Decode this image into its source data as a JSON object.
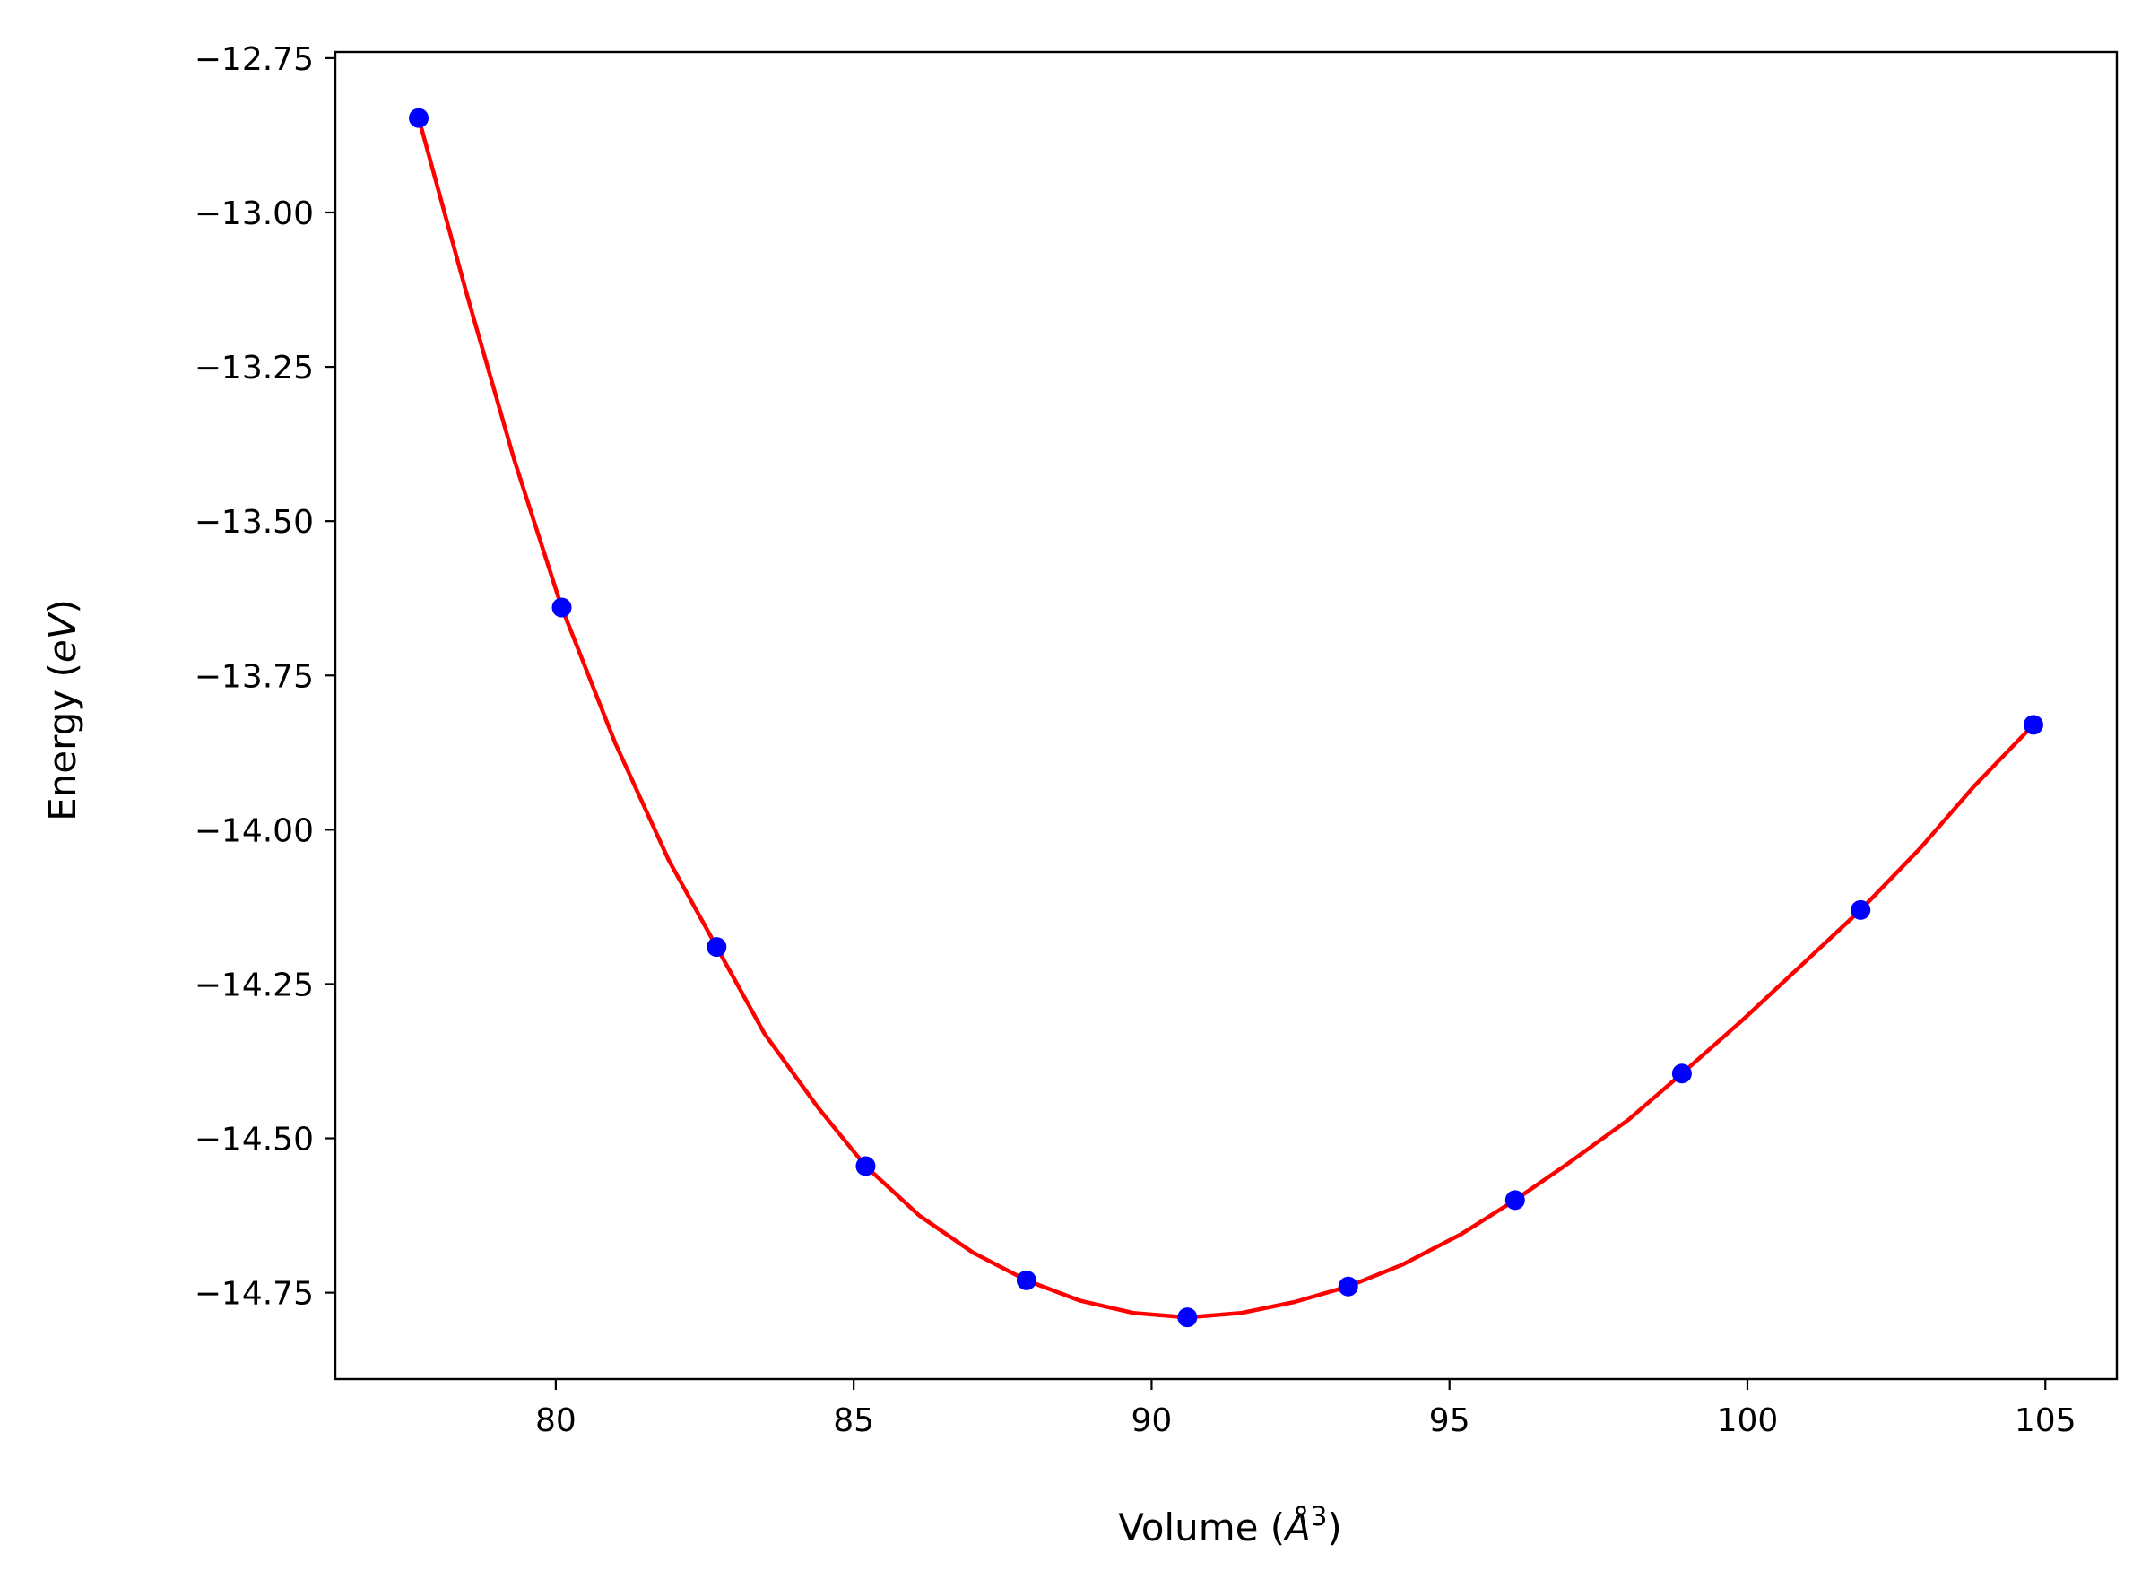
{
  "chart_data": {
    "type": "line",
    "title": "",
    "xlabel_main": "Volume (",
    "xlabel_unit": "Å",
    "xlabel_sup": "3",
    "xlabel_close": ")",
    "xlabel": "Volume (Å^3)",
    "ylabel_main": "Energy (",
    "ylabel_unit": "eV",
    "ylabel_close": ")",
    "ylabel": "Energy (eV)",
    "xlim": [
      76.3,
      106.2
    ],
    "ylim": [
      -14.89,
      -12.74
    ],
    "xticks": [
      80,
      85,
      90,
      95,
      100,
      105
    ],
    "xtick_labels": [
      "80",
      "85",
      "90",
      "95",
      "100",
      "105"
    ],
    "yticks": [
      -12.75,
      -13.0,
      -13.25,
      -13.5,
      -13.75,
      -14.0,
      -14.25,
      -14.5,
      -14.75
    ],
    "ytick_labels": [
      "−12.75",
      "−13.00",
      "−13.25",
      "−13.50",
      "−13.75",
      "−14.00",
      "−14.25",
      "−14.50",
      "−14.75"
    ],
    "grid": false,
    "legend": "none",
    "series": [
      {
        "kind": "scatter",
        "color": "#0000ff",
        "x": [
          77.7,
          80.1,
          82.7,
          85.2,
          87.9,
          90.6,
          93.3,
          96.1,
          98.9,
          101.9,
          104.8
        ],
        "y": [
          -12.847,
          -13.64,
          -14.19,
          -14.545,
          -14.73,
          -14.79,
          -14.74,
          -14.6,
          -14.395,
          -14.13,
          -13.83
        ]
      },
      {
        "kind": "line",
        "color": "#ff0000",
        "x": [
          77.7,
          78.5,
          79.3,
          80.1,
          81.0,
          81.9,
          82.7,
          83.5,
          84.4,
          85.2,
          86.1,
          87.0,
          87.9,
          88.8,
          89.7,
          90.6,
          91.5,
          92.4,
          93.3,
          94.2,
          95.2,
          96.1,
          97.0,
          98.0,
          98.9,
          99.9,
          100.9,
          101.9,
          102.9,
          103.8,
          104.8
        ],
        "y": [
          -12.847,
          -13.13,
          -13.4,
          -13.64,
          -13.86,
          -14.05,
          -14.19,
          -14.33,
          -14.45,
          -14.545,
          -14.625,
          -14.685,
          -14.73,
          -14.763,
          -14.783,
          -14.79,
          -14.783,
          -14.765,
          -14.74,
          -14.705,
          -14.655,
          -14.6,
          -14.54,
          -14.47,
          -14.395,
          -14.31,
          -14.22,
          -14.13,
          -14.03,
          -13.93,
          -13.83
        ]
      }
    ]
  }
}
